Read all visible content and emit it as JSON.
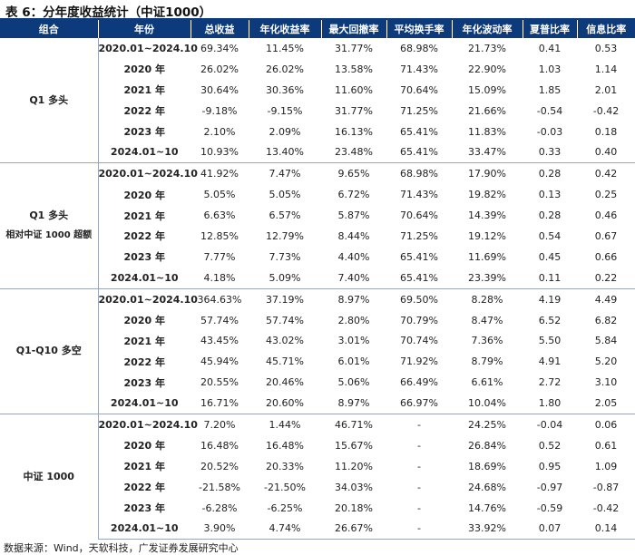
{
  "title": "表 6：分年度收益统计（中证1000）",
  "columns": [
    "组合",
    "年份",
    "总收益",
    "年化收益率",
    "最大回撤率",
    "平均换手率",
    "年化波动率",
    "夏普比率",
    "信息比率"
  ],
  "groups": [
    {
      "name": "Q1 多头",
      "subname": "",
      "rows": [
        {
          "period": "2020.01~2024.10",
          "total_return": "69.34%",
          "annual_return": "11.45%",
          "max_drawdown": "31.77%",
          "turnover": "68.98%",
          "volatility": "21.73%",
          "sharpe": "0.41",
          "info_ratio": "0.53"
        },
        {
          "period": "2020 年",
          "total_return": "26.02%",
          "annual_return": "26.02%",
          "max_drawdown": "13.58%",
          "turnover": "71.43%",
          "volatility": "22.90%",
          "sharpe": "1.03",
          "info_ratio": "1.14"
        },
        {
          "period": "2021 年",
          "total_return": "30.64%",
          "annual_return": "30.36%",
          "max_drawdown": "11.60%",
          "turnover": "70.64%",
          "volatility": "15.09%",
          "sharpe": "1.85",
          "info_ratio": "2.01"
        },
        {
          "period": "2022 年",
          "total_return": "-9.18%",
          "annual_return": "-9.15%",
          "max_drawdown": "31.77%",
          "turnover": "71.25%",
          "volatility": "21.66%",
          "sharpe": "-0.54",
          "info_ratio": "-0.42"
        },
        {
          "period": "2023 年",
          "total_return": "2.10%",
          "annual_return": "2.09%",
          "max_drawdown": "16.13%",
          "turnover": "65.41%",
          "volatility": "11.83%",
          "sharpe": "-0.03",
          "info_ratio": "0.18"
        },
        {
          "period": "2024.01~10",
          "total_return": "10.93%",
          "annual_return": "13.40%",
          "max_drawdown": "23.48%",
          "turnover": "65.41%",
          "volatility": "33.47%",
          "sharpe": "0.33",
          "info_ratio": "0.40"
        }
      ]
    },
    {
      "name": "Q1 多头",
      "subname": "相对中证 1000 超额",
      "rows": [
        {
          "period": "2020.01~2024.10",
          "total_return": "41.92%",
          "annual_return": "7.47%",
          "max_drawdown": "9.65%",
          "turnover": "68.98%",
          "volatility": "17.90%",
          "sharpe": "0.28",
          "info_ratio": "0.42"
        },
        {
          "period": "2020 年",
          "total_return": "5.05%",
          "annual_return": "5.05%",
          "max_drawdown": "6.72%",
          "turnover": "71.43%",
          "volatility": "19.82%",
          "sharpe": "0.13",
          "info_ratio": "0.25"
        },
        {
          "period": "2021 年",
          "total_return": "6.63%",
          "annual_return": "6.57%",
          "max_drawdown": "5.87%",
          "turnover": "70.64%",
          "volatility": "14.39%",
          "sharpe": "0.28",
          "info_ratio": "0.46"
        },
        {
          "period": "2022 年",
          "total_return": "12.85%",
          "annual_return": "12.79%",
          "max_drawdown": "8.44%",
          "turnover": "71.25%",
          "volatility": "19.12%",
          "sharpe": "0.54",
          "info_ratio": "0.67"
        },
        {
          "period": "2023 年",
          "total_return": "7.77%",
          "annual_return": "7.73%",
          "max_drawdown": "4.40%",
          "turnover": "65.41%",
          "volatility": "11.69%",
          "sharpe": "0.45",
          "info_ratio": "0.66"
        },
        {
          "period": "2024.01~10",
          "total_return": "4.18%",
          "annual_return": "5.09%",
          "max_drawdown": "7.40%",
          "turnover": "65.41%",
          "volatility": "23.39%",
          "sharpe": "0.11",
          "info_ratio": "0.22"
        }
      ]
    },
    {
      "name": "Q1-Q10 多空",
      "subname": "",
      "rows": [
        {
          "period": "2020.01~2024.10",
          "total_return": "364.63%",
          "annual_return": "37.19%",
          "max_drawdown": "8.97%",
          "turnover": "69.50%",
          "volatility": "8.28%",
          "sharpe": "4.19",
          "info_ratio": "4.49"
        },
        {
          "period": "2020 年",
          "total_return": "57.74%",
          "annual_return": "57.74%",
          "max_drawdown": "2.80%",
          "turnover": "70.79%",
          "volatility": "8.47%",
          "sharpe": "6.52",
          "info_ratio": "6.82"
        },
        {
          "period": "2021 年",
          "total_return": "43.45%",
          "annual_return": "43.02%",
          "max_drawdown": "3.01%",
          "turnover": "70.74%",
          "volatility": "7.36%",
          "sharpe": "5.50",
          "info_ratio": "5.84"
        },
        {
          "period": "2022 年",
          "total_return": "45.94%",
          "annual_return": "45.71%",
          "max_drawdown": "6.01%",
          "turnover": "71.92%",
          "volatility": "8.79%",
          "sharpe": "4.91",
          "info_ratio": "5.20"
        },
        {
          "period": "2023 年",
          "total_return": "20.55%",
          "annual_return": "20.46%",
          "max_drawdown": "5.06%",
          "turnover": "66.49%",
          "volatility": "6.61%",
          "sharpe": "2.72",
          "info_ratio": "3.10"
        },
        {
          "period": "2024.01~10",
          "total_return": "16.71%",
          "annual_return": "20.60%",
          "max_drawdown": "8.97%",
          "turnover": "66.97%",
          "volatility": "10.04%",
          "sharpe": "1.80",
          "info_ratio": "2.05"
        }
      ]
    },
    {
      "name": "中证 1000",
      "subname": "",
      "rows": [
        {
          "period": "2020.01~2024.10",
          "total_return": "7.20%",
          "annual_return": "1.44%",
          "max_drawdown": "46.71%",
          "turnover": "-",
          "volatility": "24.25%",
          "sharpe": "-0.04",
          "info_ratio": "0.06"
        },
        {
          "period": "2020 年",
          "total_return": "16.48%",
          "annual_return": "16.48%",
          "max_drawdown": "15.67%",
          "turnover": "-",
          "volatility": "26.84%",
          "sharpe": "0.52",
          "info_ratio": "0.61"
        },
        {
          "period": "2021 年",
          "total_return": "20.52%",
          "annual_return": "20.33%",
          "max_drawdown": "11.20%",
          "turnover": "-",
          "volatility": "18.69%",
          "sharpe": "0.95",
          "info_ratio": "1.09"
        },
        {
          "period": "2022 年",
          "total_return": "-21.58%",
          "annual_return": "-21.50%",
          "max_drawdown": "34.03%",
          "turnover": "-",
          "volatility": "24.68%",
          "sharpe": "-0.97",
          "info_ratio": "-0.87"
        },
        {
          "period": "2023 年",
          "total_return": "-6.28%",
          "annual_return": "-6.25%",
          "max_drawdown": "20.18%",
          "turnover": "-",
          "volatility": "14.76%",
          "sharpe": "-0.59",
          "info_ratio": "-0.42"
        },
        {
          "period": "2024.01~10",
          "total_return": "3.90%",
          "annual_return": "4.74%",
          "max_drawdown": "26.67%",
          "turnover": "-",
          "volatility": "33.92%",
          "sharpe": "0.07",
          "info_ratio": "0.14"
        }
      ]
    }
  ],
  "source": "数据来源：Wind，天软科技，广发证券发展研究中心",
  "colors": {
    "header_bg": "#0d3a7a",
    "header_text": "#ffffff",
    "rule": "#9aa5b8"
  }
}
